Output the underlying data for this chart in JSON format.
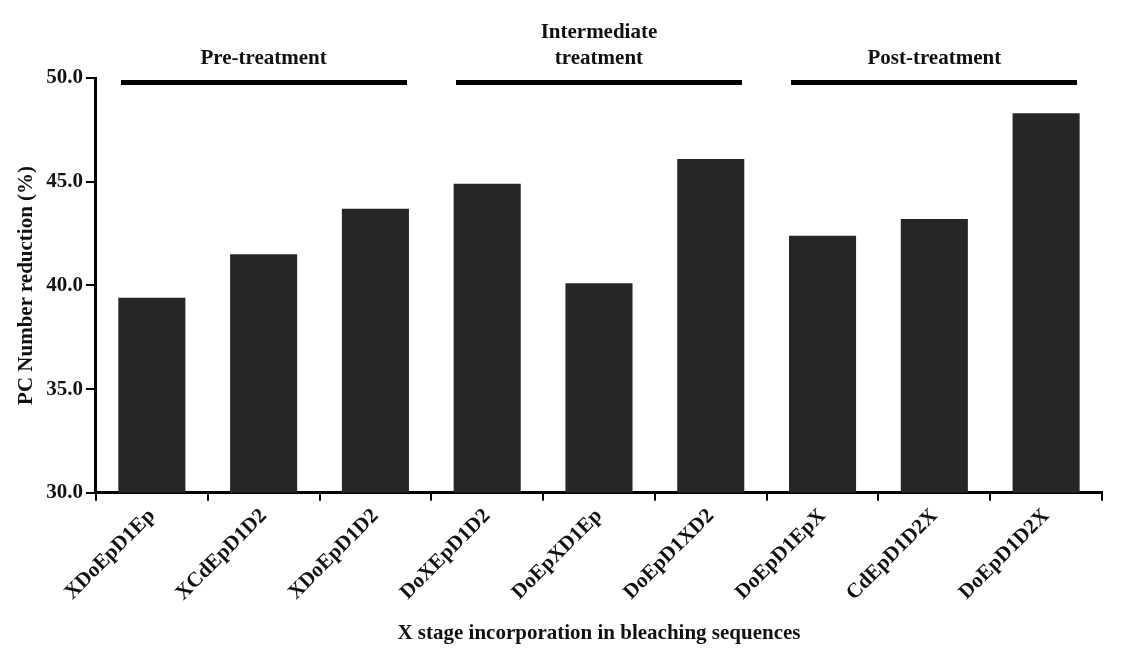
{
  "chart_data": {
    "type": "bar",
    "xlabel": "X stage incorporation in bleaching sequences",
    "ylabel": "PC Number reduction (%)",
    "categories": [
      "XDoEpD1Ep",
      "XCdEpD1D2",
      "XDoEpD1D2",
      "DoXEpD1D2",
      "DoEpXD1Ep",
      "DoEpD1XD2",
      "DoEpD1EpX",
      "CdEpD1D2X",
      "DoEpD1D2X"
    ],
    "values": [
      39.4,
      41.5,
      43.7,
      44.9,
      40.1,
      46.1,
      42.4,
      43.2,
      48.3
    ],
    "color": "#262626",
    "ylim": [
      30,
      50
    ],
    "yticks": [
      {
        "value": 30,
        "label": "30.0"
      },
      {
        "value": 35,
        "label": "35.0"
      },
      {
        "value": 40,
        "label": "40.0"
      },
      {
        "value": 45,
        "label": "45.0"
      },
      {
        "value": 50,
        "label": "50.0"
      }
    ],
    "annotations": [
      "Pre-treatment",
      "Intermediate treatment",
      "Post-treatment"
    ],
    "grid": false,
    "legend": false
  }
}
